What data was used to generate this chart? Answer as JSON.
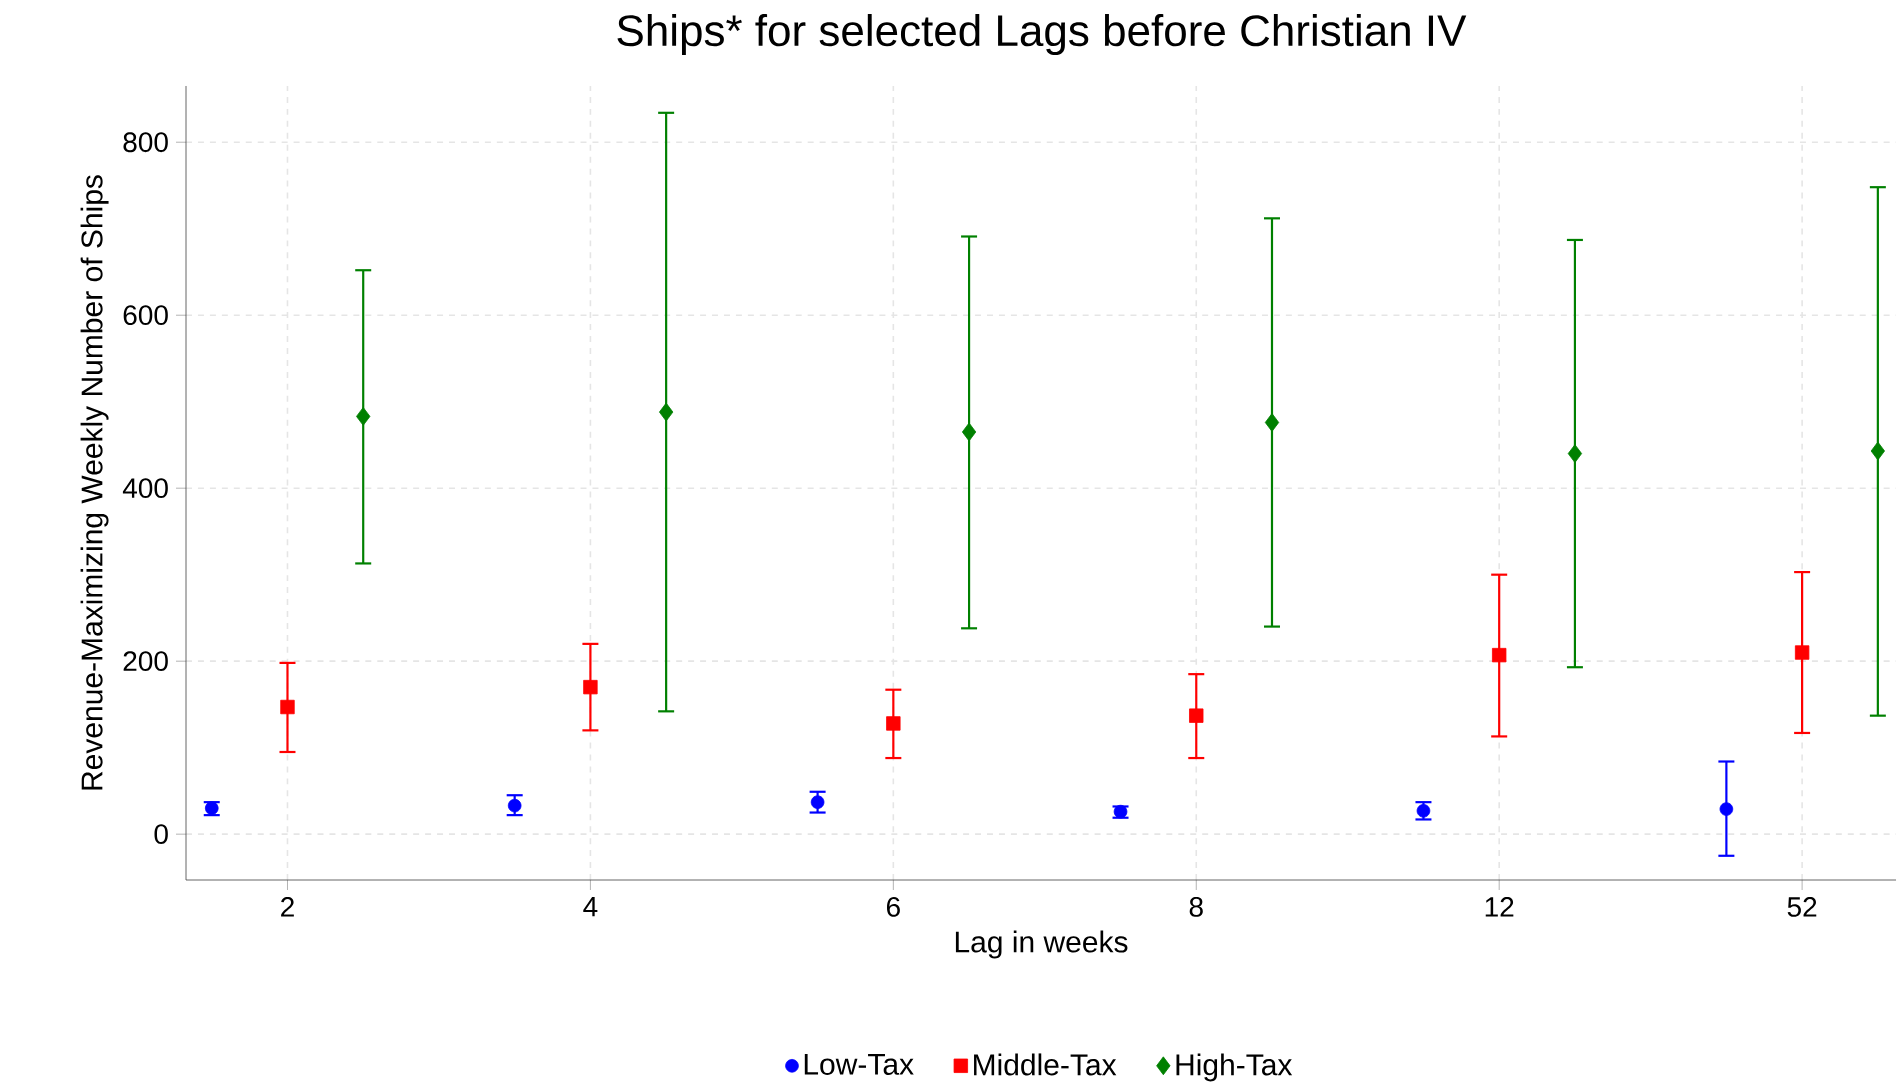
{
  "chart_data": {
    "type": "scatter",
    "title": "Ships* for selected Lags before Christian IV",
    "xlabel": "Lag in weeks",
    "ylabel": "Revenue-Maximizing Weekly Number of Ships",
    "categories": [
      "2",
      "4",
      "6",
      "8",
      "12",
      "52"
    ],
    "ylim": [
      -53,
      865
    ],
    "yticks": [
      0,
      200,
      400,
      600,
      800
    ],
    "grid": true,
    "legend": "bottom",
    "series": [
      {
        "name": "Low-Tax",
        "color": "#0000ff",
        "marker": "circle",
        "x": [
          "2",
          "4",
          "6",
          "8",
          "12",
          "52"
        ],
        "values": [
          30,
          33,
          37,
          26,
          27,
          29
        ],
        "errors": [
          [
            22,
            37
          ],
          [
            22,
            45
          ],
          [
            25,
            49
          ],
          [
            19,
            32
          ],
          [
            17,
            37
          ],
          [
            -25,
            84
          ]
        ]
      },
      {
        "name": "Middle-Tax",
        "color": "#ff0000",
        "marker": "square",
        "x": [
          "2",
          "4",
          "6",
          "8",
          "12",
          "52"
        ],
        "values": [
          147,
          170,
          128,
          137,
          207,
          210
        ],
        "errors": [
          [
            95,
            198
          ],
          [
            120,
            220
          ],
          [
            88,
            167
          ],
          [
            88,
            185
          ],
          [
            113,
            300
          ],
          [
            117,
            303
          ]
        ]
      },
      {
        "name": "High-Tax",
        "color": "#008000",
        "marker": "diamond",
        "x": [
          "2",
          "4",
          "6",
          "8",
          "12",
          "52"
        ],
        "values": [
          483,
          488,
          465,
          476,
          440,
          443
        ],
        "errors": [
          [
            313,
            652
          ],
          [
            142,
            834
          ],
          [
            238,
            691
          ],
          [
            240,
            712
          ],
          [
            193,
            687
          ],
          [
            137,
            748
          ]
        ]
      }
    ]
  }
}
